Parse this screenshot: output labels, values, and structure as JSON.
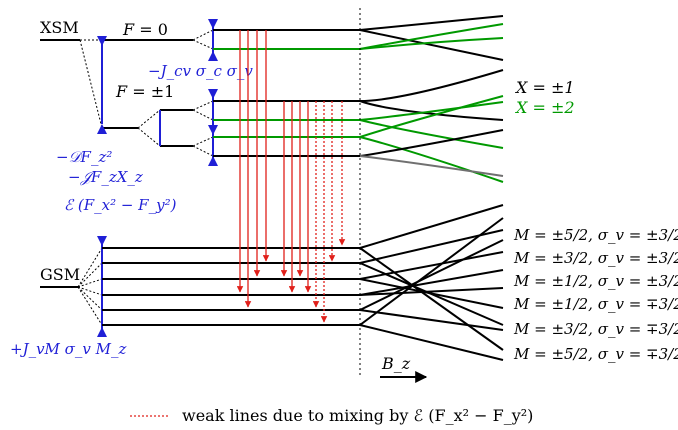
{
  "labels": {
    "xsm": "XSM",
    "gsm": "GSM",
    "f0_lhs": "F",
    "f0_rhs": " = 0",
    "f1_lhs": "F",
    "f1_rhs": " = ±1",
    "jcv": "−J_cv σ_c σ_v",
    "dfz": "−𝒟F_z²",
    "jfx": "−𝒥F_zX_z",
    "efx": "ℰ (F_x² − F_y²)",
    "jvm": "+J_vM σ_v M_z",
    "bz": "B_z",
    "x1": "X = ±1",
    "x2": "X = ±2",
    "legend": "weak lines due to mixing by ℰ (F_x² − F_y²)"
  },
  "m_labels": [
    "M = ±5/2, σ_v = ±3/2",
    "M = ±3/2, σ_v = ±3/2",
    "M = ±1/2, σ_v = ±3/2",
    "M = ±1/2, σ_v = ∓3/2",
    "M = ±3/2, σ_v = ∓3/2",
    "M = ±5/2, σ_v = ∓3/2"
  ],
  "colors": {
    "level": "#000000",
    "x2": "#009900",
    "blue": "#1f1fd6",
    "transition": "#e0201a",
    "gray": "#707070"
  }
}
